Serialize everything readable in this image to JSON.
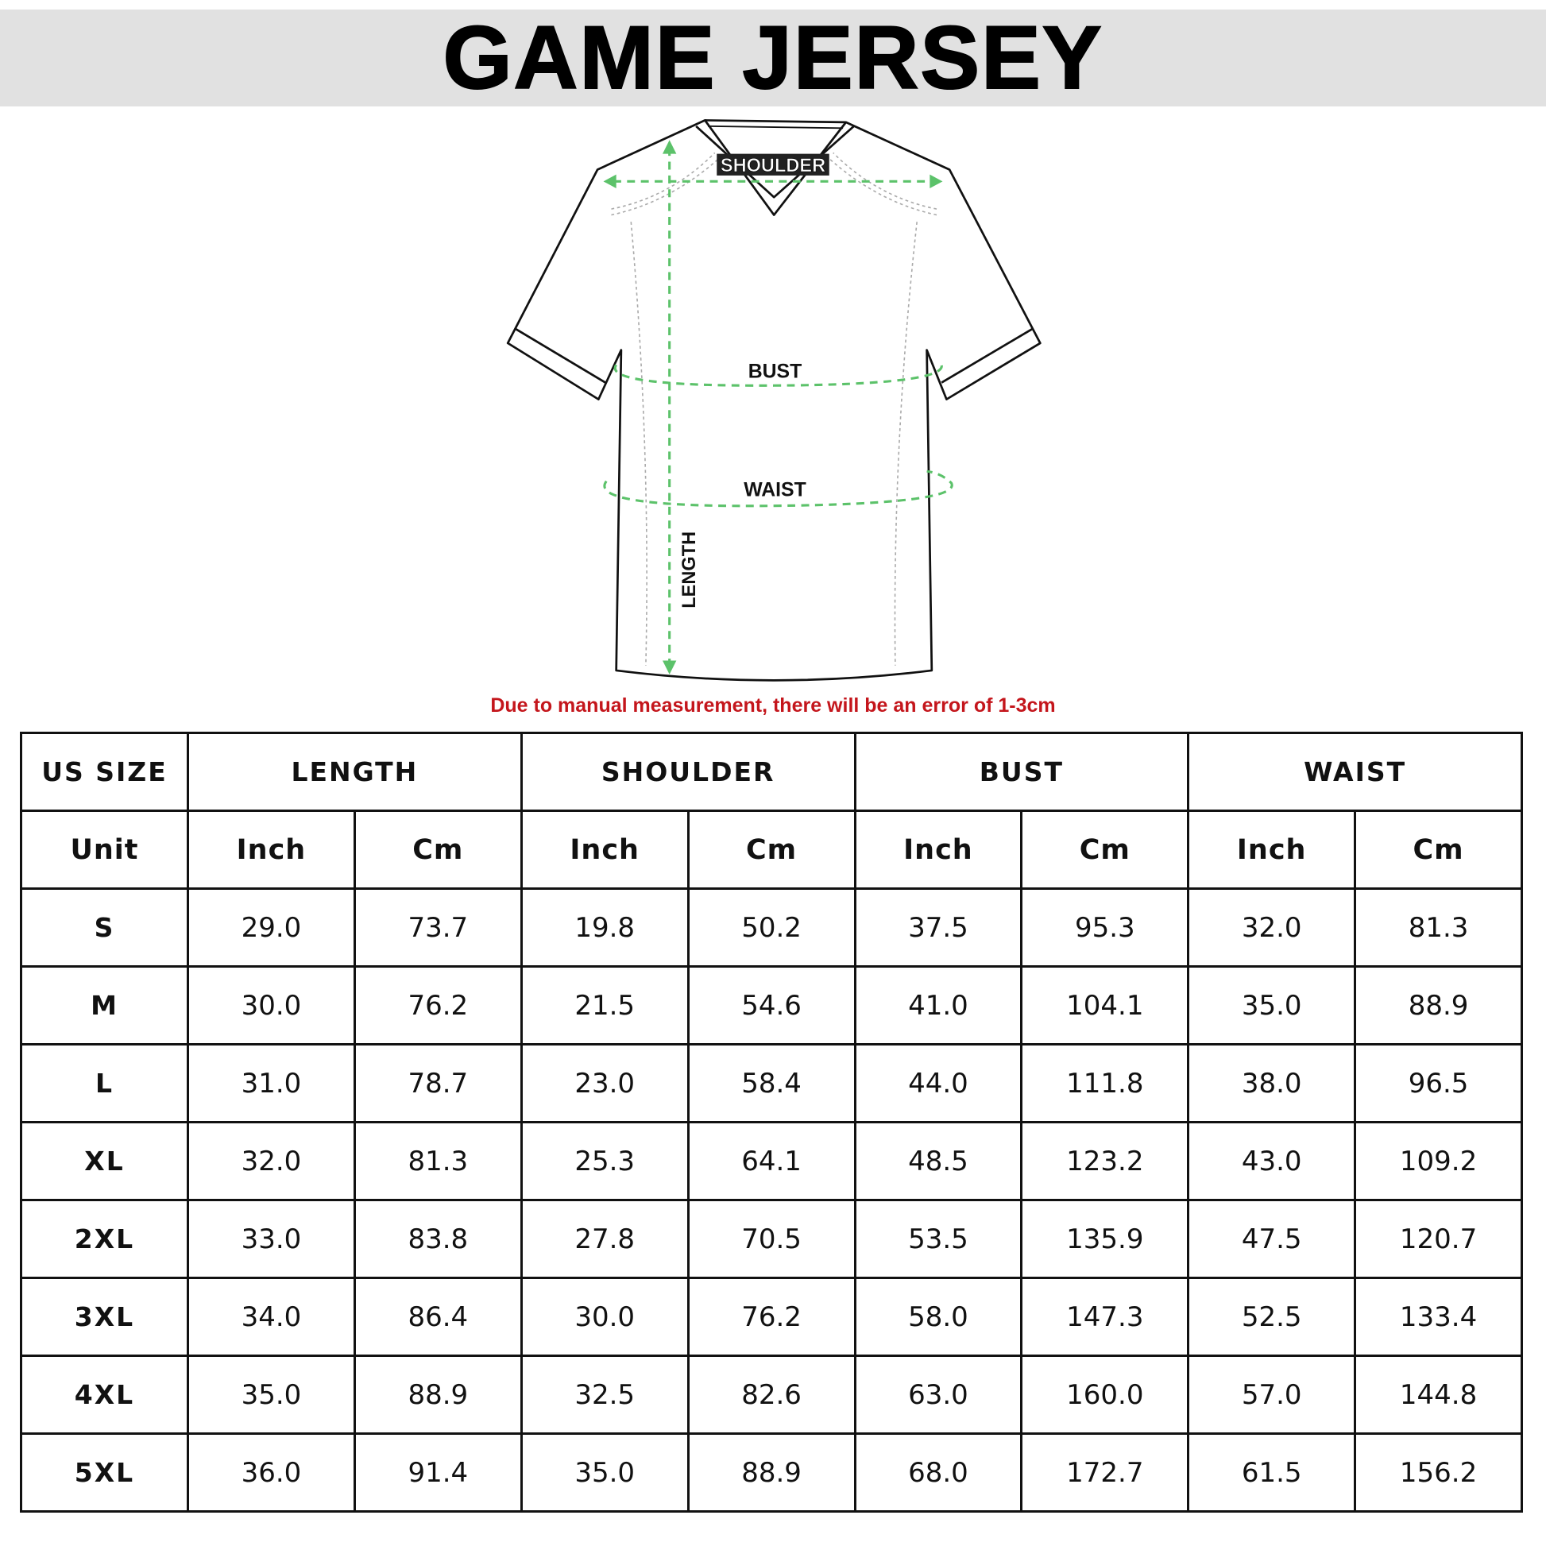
{
  "title": "GAME JERSEY",
  "diagram": {
    "labels": {
      "shoulder": "SHOULDER",
      "bust": "BUST",
      "waist": "WAIST",
      "length": "LENGTH"
    },
    "measure_color": "#5cc26a"
  },
  "note": "Due to manual measurement, there will be an error of 1-3cm",
  "note_color": "#c4161c",
  "table": {
    "size_header": "US SIZE",
    "groups": [
      "LENGTH",
      "SHOULDER",
      "BUST",
      "WAIST"
    ],
    "unit_label": "Unit",
    "units": [
      "Inch",
      "Cm",
      "Inch",
      "Cm",
      "Inch",
      "Cm",
      "Inch",
      "Cm"
    ],
    "rows": [
      {
        "size": "S",
        "values": [
          "29.0",
          "73.7",
          "19.8",
          "50.2",
          "37.5",
          "95.3",
          "32.0",
          "81.3"
        ]
      },
      {
        "size": "M",
        "values": [
          "30.0",
          "76.2",
          "21.5",
          "54.6",
          "41.0",
          "104.1",
          "35.0",
          "88.9"
        ]
      },
      {
        "size": "L",
        "values": [
          "31.0",
          "78.7",
          "23.0",
          "58.4",
          "44.0",
          "111.8",
          "38.0",
          "96.5"
        ]
      },
      {
        "size": "XL",
        "values": [
          "32.0",
          "81.3",
          "25.3",
          "64.1",
          "48.5",
          "123.2",
          "43.0",
          "109.2"
        ]
      },
      {
        "size": "2XL",
        "values": [
          "33.0",
          "83.8",
          "27.8",
          "70.5",
          "53.5",
          "135.9",
          "47.5",
          "120.7"
        ]
      },
      {
        "size": "3XL",
        "values": [
          "34.0",
          "86.4",
          "30.0",
          "76.2",
          "58.0",
          "147.3",
          "52.5",
          "133.4"
        ]
      },
      {
        "size": "4XL",
        "values": [
          "35.0",
          "88.9",
          "32.5",
          "82.6",
          "63.0",
          "160.0",
          "57.0",
          "144.8"
        ]
      },
      {
        "size": "5XL",
        "values": [
          "36.0",
          "91.4",
          "35.0",
          "88.9",
          "68.0",
          "172.7",
          "61.5",
          "156.2"
        ]
      }
    ]
  }
}
